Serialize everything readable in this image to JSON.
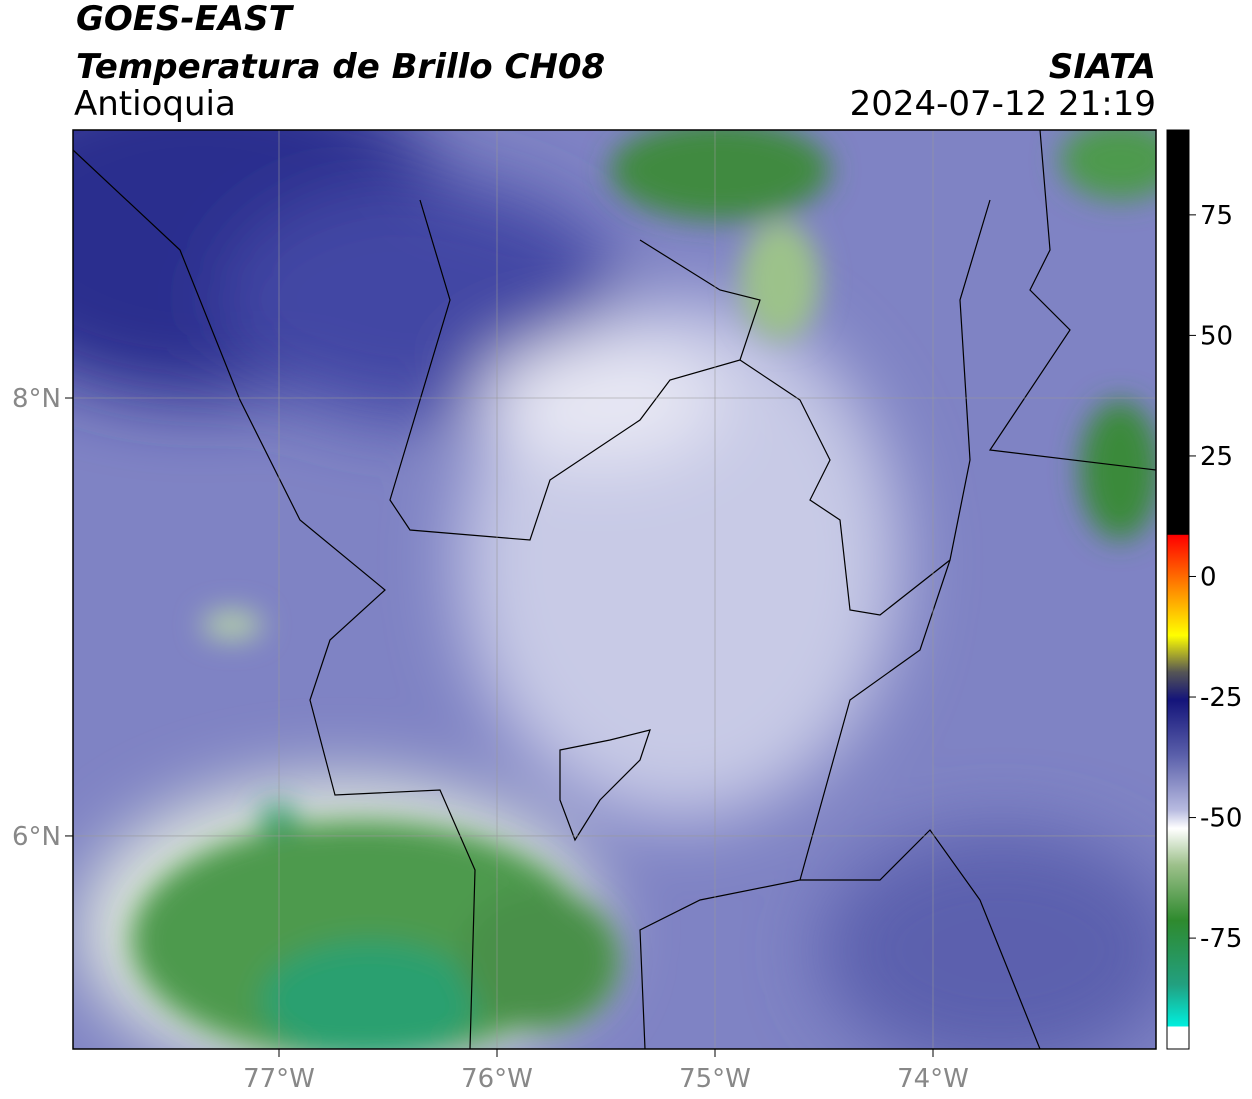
{
  "header": {
    "title": "GOES-EAST",
    "subtitle": "Temperatura de Brillo CH08",
    "region": "Antioquia",
    "source": "SIATA",
    "datetime": "2024-07-12 21:19"
  },
  "map": {
    "lonlim": [
      -77.945,
      -72.977
    ],
    "latlim": [
      5.027,
      9.224
    ],
    "lon_ticks": [
      {
        "value": -77,
        "label": "77°W"
      },
      {
        "value": -76,
        "label": "76°W"
      },
      {
        "value": -75,
        "label": "75°W"
      },
      {
        "value": -74,
        "label": "74°W"
      }
    ],
    "lat_ticks": [
      {
        "value": 8,
        "label": "8°N"
      },
      {
        "value": 6,
        "label": "6°N"
      }
    ]
  },
  "colorbar": {
    "lim": [
      -98,
      92.6
    ],
    "ticks": [
      75,
      50,
      25,
      0,
      -25,
      -50,
      -75
    ]
  }
}
